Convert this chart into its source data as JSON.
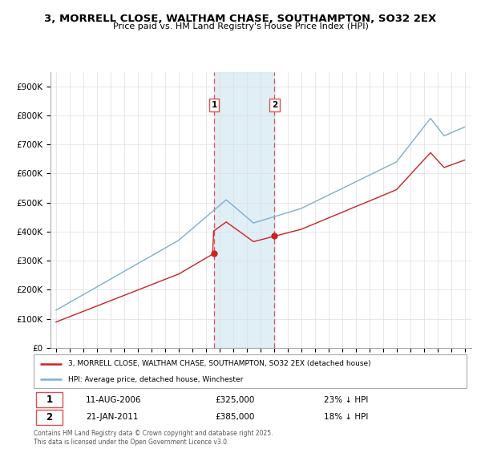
{
  "title": "3, MORRELL CLOSE, WALTHAM CHASE, SOUTHAMPTON, SO32 2EX",
  "subtitle": "Price paid vs. HM Land Registry's House Price Index (HPI)",
  "red_label": "3, MORRELL CLOSE, WALTHAM CHASE, SOUTHAMPTON, SO32 2EX (detached house)",
  "blue_label": "HPI: Average price, detached house, Winchester",
  "sale1_date": "11-AUG-2006",
  "sale1_price": 325000,
  "sale1_pct": "23% ↓ HPI",
  "sale2_date": "21-JAN-2011",
  "sale2_price": 385000,
  "sale2_pct": "18% ↓ HPI",
  "footer": "Contains HM Land Registry data © Crown copyright and database right 2025.\nThis data is licensed under the Open Government Licence v3.0.",
  "shade_color": "#cce4f0",
  "vline_color": "#e05050",
  "background_color": "#ffffff",
  "sale1_x": 2006.62,
  "sale2_x": 2011.05,
  "ylim_max": 950000,
  "xlim_min": 1994.6,
  "xlim_max": 2025.5,
  "red_color": "#cc2222",
  "blue_color": "#7ab0d4"
}
